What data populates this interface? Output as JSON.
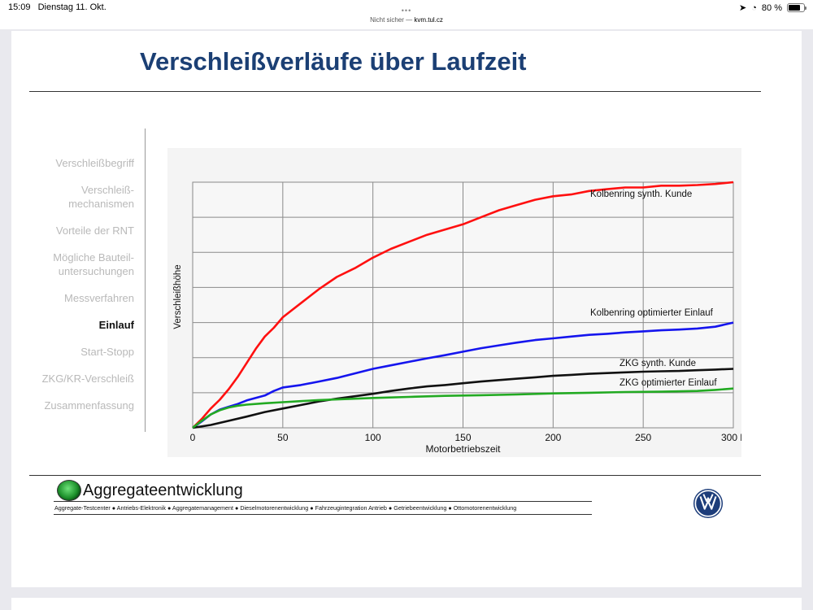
{
  "statusbar": {
    "time": "15:09",
    "date": "Dienstag 11. Okt.",
    "battery": "80 %",
    "battery_level": 0.8
  },
  "urlbar": {
    "security": "Nicht sicher —",
    "host": "kvm.tul.cz",
    "dots": "•••"
  },
  "slide": {
    "title": "Verschleißverläufe über Laufzeit",
    "nav": [
      {
        "label": "Verschleißbegriff",
        "active": false
      },
      {
        "label": "Verschleiß-\nmechanismen",
        "active": false
      },
      {
        "label": "Vorteile der RNT",
        "active": false
      },
      {
        "label": "Mögliche Bauteil-\nuntersuchungen",
        "active": false
      },
      {
        "label": "Messverfahren",
        "active": false
      },
      {
        "label": "Einlauf",
        "active": true
      },
      {
        "label": "Start-Stopp",
        "active": false
      },
      {
        "label": "ZKG/KR-Verschleiß",
        "active": false
      },
      {
        "label": "Zusammenfassung",
        "active": false
      }
    ],
    "footer": {
      "brand": "Aggregateentwicklung",
      "tagline": "Aggregate-Testcenter ● Antriebs-Elektronik ● Aggregatemanagement ● Dieselmotorenentwicklung  ● Fahrzeugintegration Antrieb ● Getriebeentwicklung ● Ottomotorenentwicklung"
    }
  },
  "chart_data": {
    "type": "line",
    "xlabel": "Motorbetriebszeit",
    "ylabel": "Verschleißhöhe",
    "xlim": [
      0,
      300
    ],
    "ylim": [
      0,
      7
    ],
    "x_ticks": [
      "0",
      "50",
      "100",
      "150",
      "200",
      "250",
      "300 h"
    ],
    "grid": true,
    "series": [
      {
        "name": "Kolbenring synth. Kunde",
        "color": "#ff1010",
        "x": [
          0,
          5,
          10,
          15,
          20,
          25,
          30,
          35,
          40,
          45,
          50,
          60,
          70,
          80,
          90,
          100,
          110,
          120,
          130,
          140,
          150,
          160,
          170,
          180,
          190,
          200,
          210,
          220,
          230,
          240,
          250,
          260,
          270,
          280,
          290,
          300
        ],
        "y": [
          0,
          0.25,
          0.55,
          0.8,
          1.1,
          1.45,
          1.85,
          2.25,
          2.6,
          2.85,
          3.15,
          3.55,
          3.95,
          4.3,
          4.55,
          4.85,
          5.1,
          5.3,
          5.5,
          5.65,
          5.8,
          6.0,
          6.2,
          6.35,
          6.5,
          6.6,
          6.65,
          6.75,
          6.8,
          6.85,
          6.85,
          6.9,
          6.9,
          6.92,
          6.95,
          7.0
        ]
      },
      {
        "name": "Kolbenring optimierter Einlauf",
        "color": "#1515ee",
        "x": [
          0,
          5,
          10,
          15,
          20,
          25,
          30,
          35,
          40,
          45,
          50,
          60,
          70,
          80,
          90,
          100,
          110,
          120,
          130,
          140,
          150,
          160,
          170,
          180,
          190,
          200,
          210,
          220,
          230,
          240,
          250,
          260,
          270,
          280,
          290,
          300
        ],
        "y": [
          0,
          0.18,
          0.38,
          0.52,
          0.6,
          0.68,
          0.78,
          0.85,
          0.92,
          1.05,
          1.15,
          1.22,
          1.32,
          1.42,
          1.55,
          1.68,
          1.78,
          1.88,
          1.98,
          2.07,
          2.17,
          2.27,
          2.35,
          2.43,
          2.5,
          2.55,
          2.6,
          2.65,
          2.68,
          2.72,
          2.75,
          2.78,
          2.8,
          2.83,
          2.88,
          3.0
        ]
      },
      {
        "name": "ZKG synth. Kunde",
        "color": "#111111",
        "x": [
          0,
          10,
          20,
          30,
          40,
          50,
          60,
          70,
          80,
          90,
          100,
          110,
          120,
          130,
          140,
          150,
          160,
          170,
          180,
          190,
          200,
          210,
          220,
          230,
          240,
          250,
          260,
          270,
          280,
          290,
          300
        ],
        "y": [
          0,
          0.08,
          0.2,
          0.32,
          0.45,
          0.55,
          0.65,
          0.75,
          0.83,
          0.9,
          0.97,
          1.05,
          1.12,
          1.18,
          1.22,
          1.27,
          1.32,
          1.36,
          1.4,
          1.44,
          1.48,
          1.51,
          1.54,
          1.56,
          1.58,
          1.6,
          1.61,
          1.62,
          1.64,
          1.66,
          1.68
        ]
      },
      {
        "name": "ZKG optimierter Einlauf",
        "color": "#22aa22",
        "x": [
          0,
          5,
          10,
          15,
          20,
          25,
          30,
          40,
          50,
          60,
          70,
          80,
          90,
          100,
          120,
          140,
          160,
          180,
          200,
          220,
          240,
          260,
          280,
          290,
          300
        ],
        "y": [
          0,
          0.2,
          0.38,
          0.5,
          0.58,
          0.63,
          0.66,
          0.7,
          0.73,
          0.76,
          0.79,
          0.81,
          0.83,
          0.85,
          0.88,
          0.91,
          0.93,
          0.95,
          0.98,
          1.0,
          1.02,
          1.03,
          1.05,
          1.08,
          1.12
        ]
      }
    ]
  }
}
